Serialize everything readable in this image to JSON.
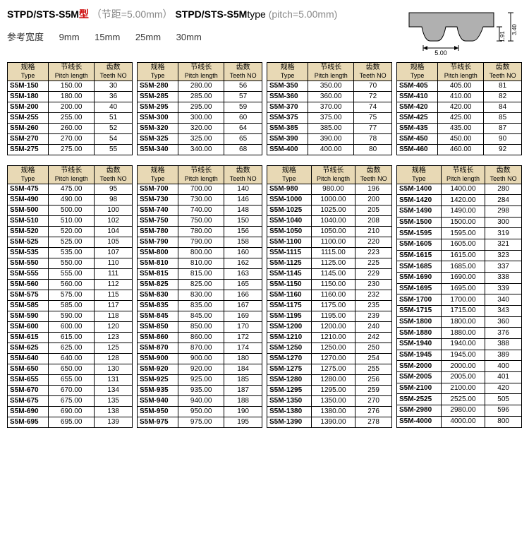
{
  "title": {
    "model_prefix": "STPD/STS-S5M",
    "model_suffix_cn": "型",
    "pitch_cn": "（节距=5.00mm）",
    "model_en": "STPD/STS-S5M",
    "type_en": "type",
    "pitch_en": "(pitch=5.00mm)"
  },
  "widths": {
    "label": "参考宽度",
    "values": [
      "9mm",
      "15mm",
      "25mm",
      "30mm"
    ]
  },
  "profile": {
    "pitch": "5.00",
    "height1": "1.91",
    "height2": "3.40",
    "tooth_color": "#b0b0b0",
    "line_color": "#000"
  },
  "headers": {
    "type_cn": "规格",
    "type_en": "Type",
    "pitch_cn": "节线长",
    "pitch_en": "Pitch length",
    "teeth_cn": "齿数",
    "teeth_en": "Teeth NO"
  },
  "section1": [
    {
      "groups": [
        [
          [
            "S5M-150",
            "150.00",
            "30"
          ],
          [
            "S5M-180",
            "180.00",
            "36"
          ],
          [
            "S5M-200",
            "200.00",
            "40"
          ],
          [
            "S5M-255",
            "255.00",
            "51"
          ],
          [
            "S5M-260",
            "260.00",
            "52"
          ]
        ],
        [
          [
            "S5M-270",
            "270.00",
            "54"
          ],
          [
            "S5M-275",
            "275.00",
            "55"
          ]
        ]
      ]
    },
    {
      "groups": [
        [
          [
            "S5M-280",
            "280.00",
            "56"
          ],
          [
            "S5M-285",
            "285.00",
            "57"
          ],
          [
            "S5M-295",
            "295.00",
            "59"
          ],
          [
            "S5M-300",
            "300.00",
            "60"
          ],
          [
            "S5M-320",
            "320.00",
            "64"
          ]
        ],
        [
          [
            "S5M-325",
            "325.00",
            "65"
          ],
          [
            "S5M-340",
            "340.00",
            "68"
          ]
        ]
      ]
    },
    {
      "groups": [
        [
          [
            "S5M-350",
            "350.00",
            "70"
          ],
          [
            "S5M-360",
            "360.00",
            "72"
          ],
          [
            "S5M-370",
            "370.00",
            "74"
          ],
          [
            "S5M-375",
            "375.00",
            "75"
          ],
          [
            "S5M-385",
            "385.00",
            "77"
          ]
        ],
        [
          [
            "S5M-390",
            "390.00",
            "78"
          ],
          [
            "S5M-400",
            "400.00",
            "80"
          ]
        ]
      ]
    },
    {
      "groups": [
        [
          [
            "S5M-405",
            "405.00",
            "81"
          ],
          [
            "S5M-410",
            "410.00",
            "82"
          ],
          [
            "S5M-420",
            "420.00",
            "84"
          ],
          [
            "S5M-425",
            "425.00",
            "85"
          ],
          [
            "S5M-435",
            "435.00",
            "87"
          ]
        ],
        [
          [
            "S5M-450",
            "450.00",
            "90"
          ],
          [
            "S5M-460",
            "460.00",
            "92"
          ]
        ]
      ]
    }
  ],
  "section2": [
    {
      "groups": [
        [
          [
            "S5M-475",
            "475.00",
            "95"
          ],
          [
            "S5M-490",
            "490.00",
            "98"
          ],
          [
            "S5M-500",
            "500.00",
            "100"
          ],
          [
            "S5M-510",
            "510.00",
            "102"
          ],
          [
            "S5M-520",
            "520.00",
            "104"
          ]
        ],
        [
          [
            "S5M-525",
            "525.00",
            "105"
          ],
          [
            "S5M-535",
            "535.00",
            "107"
          ],
          [
            "S5M-550",
            "550.00",
            "110"
          ],
          [
            "S5M-555",
            "555.00",
            "111"
          ],
          [
            "S5M-560",
            "560.00",
            "112"
          ]
        ],
        [
          [
            "S5M-575",
            "575.00",
            "115"
          ],
          [
            "S5M-585",
            "585.00",
            "117"
          ],
          [
            "S5M-590",
            "590.00",
            "118"
          ],
          [
            "S5M-600",
            "600.00",
            "120"
          ],
          [
            "S5M-615",
            "615.00",
            "123"
          ]
        ],
        [
          [
            "S5M-625",
            "625.00",
            "125"
          ],
          [
            "S5M-640",
            "640.00",
            "128"
          ],
          [
            "S5M-650",
            "650.00",
            "130"
          ],
          [
            "S5M-655",
            "655.00",
            "131"
          ],
          [
            "S5M-670",
            "670.00",
            "134"
          ]
        ],
        [
          [
            "S5M-675",
            "675.00",
            "135"
          ],
          [
            "S5M-690",
            "690.00",
            "138"
          ],
          [
            "S5M-695",
            "695.00",
            "139"
          ]
        ]
      ]
    },
    {
      "groups": [
        [
          [
            "S5M-700",
            "700.00",
            "140"
          ],
          [
            "S5M-730",
            "730.00",
            "146"
          ],
          [
            "S5M-740",
            "740.00",
            "148"
          ],
          [
            "S5M-750",
            "750.00",
            "150"
          ],
          [
            "S5M-780",
            "780.00",
            "156"
          ]
        ],
        [
          [
            "S5M-790",
            "790.00",
            "158"
          ],
          [
            "S5M-800",
            "800.00",
            "160"
          ],
          [
            "S5M-810",
            "810.00",
            "162"
          ],
          [
            "S5M-815",
            "815.00",
            "163"
          ],
          [
            "S5M-825",
            "825.00",
            "165"
          ]
        ],
        [
          [
            "S5M-830",
            "830.00",
            "166"
          ],
          [
            "S5M-835",
            "835.00",
            "167"
          ],
          [
            "S5M-845",
            "845.00",
            "169"
          ],
          [
            "S5M-850",
            "850.00",
            "170"
          ],
          [
            "S5M-860",
            "860.00",
            "172"
          ]
        ],
        [
          [
            "S5M-870",
            "870.00",
            "174"
          ],
          [
            "S5M-900",
            "900.00",
            "180"
          ],
          [
            "S5M-920",
            "920.00",
            "184"
          ],
          [
            "S5M-925",
            "925.00",
            "185"
          ],
          [
            "S5M-935",
            "935.00",
            "187"
          ]
        ],
        [
          [
            "S5M-940",
            "940.00",
            "188"
          ],
          [
            "S5M-950",
            "950.00",
            "190"
          ],
          [
            "S5M-975",
            "975.00",
            "195"
          ]
        ]
      ]
    },
    {
      "groups": [
        [
          [
            "S5M-980",
            "980.00",
            "196"
          ],
          [
            "S5M-1000",
            "1000.00",
            "200"
          ],
          [
            "S5M-1025",
            "1025.00",
            "205"
          ],
          [
            "S5M-1040",
            "1040.00",
            "208"
          ],
          [
            "S5M-1050",
            "1050.00",
            "210"
          ]
        ],
        [
          [
            "S5M-1100",
            "1100.00",
            "220"
          ],
          [
            "S5M-1115",
            "1115.00",
            "223"
          ],
          [
            "S5M-1125",
            "1125.00",
            "225"
          ],
          [
            "S5M-1145",
            "1145.00",
            "229"
          ],
          [
            "S5M-1150",
            "1150.00",
            "230"
          ]
        ],
        [
          [
            "S5M-1160",
            "1160.00",
            "232"
          ],
          [
            "S5M-1175",
            "1175.00",
            "235"
          ],
          [
            "S5M-1195",
            "1195.00",
            "239"
          ],
          [
            "S5M-1200",
            "1200.00",
            "240"
          ],
          [
            "S5M-1210",
            "1210.00",
            "242"
          ]
        ],
        [
          [
            "S5M-1250",
            "1250.00",
            "250"
          ],
          [
            "S5M-1270",
            "1270.00",
            "254"
          ],
          [
            "S5M-1275",
            "1275.00",
            "255"
          ],
          [
            "S5M-1280",
            "1280.00",
            "256"
          ],
          [
            "S5M-1295",
            "1295.00",
            "259"
          ]
        ],
        [
          [
            "S5M-1350",
            "1350.00",
            "270"
          ],
          [
            "S5M-1380",
            "1380.00",
            "276"
          ],
          [
            "S5M-1390",
            "1390.00",
            "278"
          ]
        ]
      ]
    },
    {
      "groups": [
        [
          [
            "S5M-1400",
            "1400.00",
            "280"
          ],
          [
            "S5M-1420",
            "1420.00",
            "284"
          ],
          [
            "S5M-1490",
            "1490.00",
            "298"
          ],
          [
            "S5M-1500",
            "1500.00",
            "300"
          ],
          [
            "S5M-1595",
            "1595.00",
            "319"
          ]
        ],
        [
          [
            "S5M-1605",
            "1605.00",
            "321"
          ],
          [
            "S5M-1615",
            "1615.00",
            "323"
          ],
          [
            "S5M-1685",
            "1685.00",
            "337"
          ],
          [
            "S5M-1690",
            "1690.00",
            "338"
          ],
          [
            "S5M-1695",
            "1695.00",
            "339"
          ]
        ],
        [
          [
            "S5M-1700",
            "1700.00",
            "340"
          ],
          [
            "S5M-1715",
            "1715.00",
            "343"
          ],
          [
            "S5M-1800",
            "1800.00",
            "360"
          ],
          [
            "S5M-1880",
            "1880.00",
            "376"
          ],
          [
            "S5M-1940",
            "1940.00",
            "388"
          ]
        ],
        [
          [
            "S5M-1945",
            "1945.00",
            "389"
          ],
          [
            "S5M-2000",
            "2000.00",
            "400"
          ],
          [
            "S5M-2005",
            "2005.00",
            "401"
          ],
          [
            "S5M-2100",
            "2100.00",
            "420"
          ],
          [
            "S5M-2525",
            "2525.00",
            "505"
          ]
        ],
        [
          [
            "S5M-2980",
            "2980.00",
            "596"
          ],
          [
            "S5M-4000",
            "4000.00",
            "800"
          ]
        ]
      ]
    }
  ]
}
